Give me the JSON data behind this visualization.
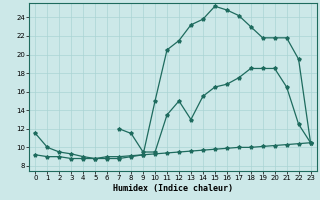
{
  "xlabel": "Humidex (Indice chaleur)",
  "bg_color": "#cce8e8",
  "line_color": "#1e6b5e",
  "grid_color": "#aad4d4",
  "xlim": [
    -0.5,
    23.5
  ],
  "ylim": [
    7.5,
    25.5
  ],
  "yticks": [
    8,
    10,
    12,
    14,
    16,
    18,
    20,
    22,
    24
  ],
  "xticks": [
    0,
    1,
    2,
    3,
    4,
    5,
    6,
    7,
    8,
    9,
    10,
    11,
    12,
    13,
    14,
    15,
    16,
    17,
    18,
    19,
    20,
    21,
    22,
    23
  ],
  "curve1_x": [
    0,
    1,
    2,
    3,
    4,
    5,
    6,
    7,
    8,
    9,
    10,
    11,
    12,
    13,
    14,
    15,
    16,
    17,
    18,
    19,
    20,
    21,
    22,
    23
  ],
  "curve1_y": [
    11.5,
    10.0,
    9.5,
    9.3,
    9.0,
    8.8,
    8.8,
    8.8,
    9.0,
    9.2,
    15.0,
    20.5,
    21.5,
    23.2,
    23.8,
    25.2,
    24.8,
    24.2,
    23.0,
    21.8,
    21.8,
    21.8,
    19.5,
    10.5
  ],
  "curve2_x": [
    7,
    8,
    9,
    10,
    11,
    12,
    13,
    14,
    15,
    16,
    17,
    18,
    19,
    20,
    21,
    22,
    23
  ],
  "curve2_y": [
    12.0,
    11.5,
    9.5,
    9.5,
    13.5,
    15.0,
    13.0,
    15.5,
    16.5,
    16.8,
    17.5,
    18.5,
    18.5,
    18.5,
    16.5,
    12.5,
    10.5
  ],
  "curve3_x": [
    0,
    1,
    2,
    3,
    4,
    5,
    6,
    7,
    8,
    9,
    10,
    11,
    12,
    13,
    14,
    15,
    16,
    17,
    18,
    19,
    20,
    21,
    22,
    23
  ],
  "curve3_y": [
    9.2,
    9.0,
    9.0,
    8.8,
    8.8,
    8.8,
    9.0,
    9.0,
    9.1,
    9.2,
    9.3,
    9.4,
    9.5,
    9.6,
    9.7,
    9.8,
    9.9,
    10.0,
    10.0,
    10.1,
    10.2,
    10.3,
    10.4,
    10.5
  ]
}
